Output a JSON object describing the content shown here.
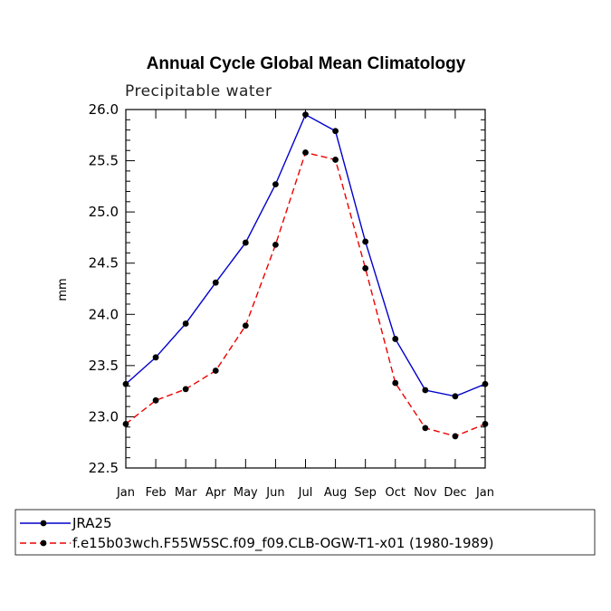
{
  "chart_data": {
    "type": "line",
    "title": "Annual Cycle Global Mean Climatology",
    "subtitle": "Precipitable water",
    "xlabel": "",
    "ylabel": "mm",
    "categories": [
      "Jan",
      "Feb",
      "Mar",
      "Apr",
      "May",
      "Jun",
      "Jul",
      "Aug",
      "Sep",
      "Oct",
      "Nov",
      "Dec",
      "Jan"
    ],
    "ylim": [
      22.5,
      26.0
    ],
    "yticks": [
      "22.5",
      "23.0",
      "23.5",
      "24.0",
      "24.5",
      "25.0",
      "25.5",
      "26.0"
    ],
    "legend_position": "bottom",
    "grid": false,
    "series": [
      {
        "name": "JRA25",
        "color": "#0000cc",
        "dash": "solid",
        "values": [
          23.32,
          23.58,
          23.91,
          24.31,
          24.7,
          25.27,
          25.95,
          25.79,
          24.71,
          23.76,
          23.26,
          23.2,
          23.32
        ]
      },
      {
        "name": "f.e15b03wch.F55W5SC.f09_f09.CLB-OGW-T1-x01 (1980-1989)",
        "color": "#ee0000",
        "dash": "dashed",
        "values": [
          22.93,
          23.16,
          23.27,
          23.45,
          23.89,
          24.68,
          25.58,
          25.51,
          24.45,
          23.33,
          22.89,
          22.81,
          22.93
        ]
      }
    ]
  }
}
